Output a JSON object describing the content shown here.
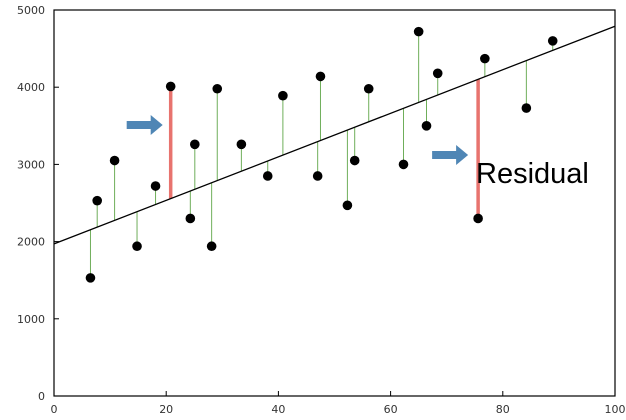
{
  "chart_data": {
    "type": "scatter",
    "title": "",
    "xlabel": "",
    "ylabel": "",
    "xlim": [
      0,
      100
    ],
    "ylim": [
      0,
      5000
    ],
    "x_ticks": [
      0,
      20,
      40,
      60,
      80,
      100
    ],
    "y_ticks": [
      0,
      1000,
      2000,
      3000,
      4000,
      5000
    ],
    "grid": false,
    "regression_line": {
      "x": [
        0,
        100
      ],
      "y": [
        1970,
        4790
      ]
    },
    "points": [
      {
        "x": 6.5,
        "y": 1530
      },
      {
        "x": 7.7,
        "y": 2530
      },
      {
        "x": 10.8,
        "y": 3050
      },
      {
        "x": 14.8,
        "y": 1940
      },
      {
        "x": 18.1,
        "y": 2720
      },
      {
        "x": 20.8,
        "y": 4010
      },
      {
        "x": 24.3,
        "y": 2300
      },
      {
        "x": 25.1,
        "y": 3260
      },
      {
        "x": 28.1,
        "y": 1940
      },
      {
        "x": 29.1,
        "y": 3980
      },
      {
        "x": 33.4,
        "y": 3260
      },
      {
        "x": 38.1,
        "y": 2850
      },
      {
        "x": 40.8,
        "y": 3890
      },
      {
        "x": 47.0,
        "y": 2850
      },
      {
        "x": 47.5,
        "y": 4140
      },
      {
        "x": 52.3,
        "y": 2470
      },
      {
        "x": 53.6,
        "y": 3050
      },
      {
        "x": 56.1,
        "y": 3980
      },
      {
        "x": 62.3,
        "y": 3000
      },
      {
        "x": 65.0,
        "y": 4720
      },
      {
        "x": 66.4,
        "y": 3500
      },
      {
        "x": 68.4,
        "y": 4180
      },
      {
        "x": 75.6,
        "y": 2300
      },
      {
        "x": 76.8,
        "y": 4370
      },
      {
        "x": 84.2,
        "y": 3730
      },
      {
        "x": 88.9,
        "y": 4600
      }
    ],
    "highlighted_residual_x": [
      20.8,
      75.6
    ],
    "annotations": [
      {
        "text": "Residual"
      }
    ],
    "colors": {
      "point": "#000000",
      "regression_line": "#000000",
      "residual": "#6fae5a",
      "highlighted_residual": "#e8736e",
      "arrow": "#4f86b5",
      "axis": "#000000"
    }
  }
}
